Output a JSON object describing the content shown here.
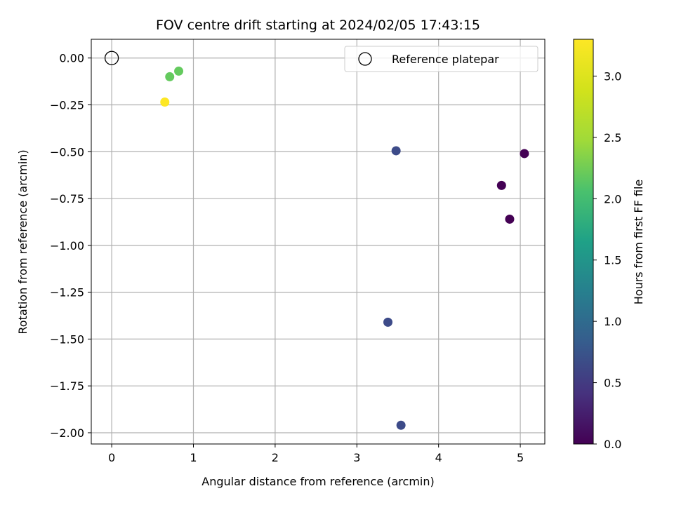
{
  "chart_data": {
    "type": "scatter",
    "title": "FOV centre drift starting at 2024/02/05 17:43:15",
    "xlabel": "Angular distance from reference (arcmin)",
    "ylabel": "Rotation from reference (arcmin)",
    "xlim": [
      -0.25,
      5.3
    ],
    "ylim": [
      -2.06,
      0.1
    ],
    "xticks": [
      0,
      1,
      2,
      3,
      4,
      5
    ],
    "yticks": [
      0.0,
      -0.25,
      -0.5,
      -0.75,
      -1.0,
      -1.25,
      -1.5,
      -1.75,
      -2.0
    ],
    "x_tick_labels": [
      "0",
      "1",
      "2",
      "3",
      "4",
      "5"
    ],
    "y_tick_labels": [
      "0.00",
      "−0.25",
      "−0.50",
      "−0.75",
      "−1.00",
      "−1.25",
      "−1.50",
      "−1.75",
      "−2.00"
    ],
    "grid": true,
    "legend": {
      "placement": "top-right",
      "entries": [
        "Reference platepar"
      ]
    },
    "reference_point": {
      "name": "Reference platepar",
      "x": 0.0,
      "y": 0.0
    },
    "series": [
      {
        "points": [
          {
            "x": 0.82,
            "y": -0.07,
            "hours": 2.5
          },
          {
            "x": 0.71,
            "y": -0.1,
            "hours": 2.5
          },
          {
            "x": 0.65,
            "y": -0.235,
            "hours": 3.3
          },
          {
            "x": 3.48,
            "y": -0.495,
            "hours": 0.75
          },
          {
            "x": 5.05,
            "y": -0.51,
            "hours": 0.0
          },
          {
            "x": 4.77,
            "y": -0.68,
            "hours": 0.0
          },
          {
            "x": 4.87,
            "y": -0.86,
            "hours": 0.0
          },
          {
            "x": 3.38,
            "y": -1.41,
            "hours": 0.75
          },
          {
            "x": 3.54,
            "y": -1.96,
            "hours": 0.75
          }
        ]
      }
    ],
    "colorbar": {
      "label": "Hours from first FF file",
      "colormap": "viridis",
      "min": 0.0,
      "max": 3.3,
      "ticks": [
        0.0,
        0.5,
        1.0,
        1.5,
        2.0,
        2.5,
        3.0
      ],
      "tick_labels": [
        "0.0",
        "0.5",
        "1.0",
        "1.5",
        "2.0",
        "2.5",
        "3.0"
      ]
    }
  }
}
